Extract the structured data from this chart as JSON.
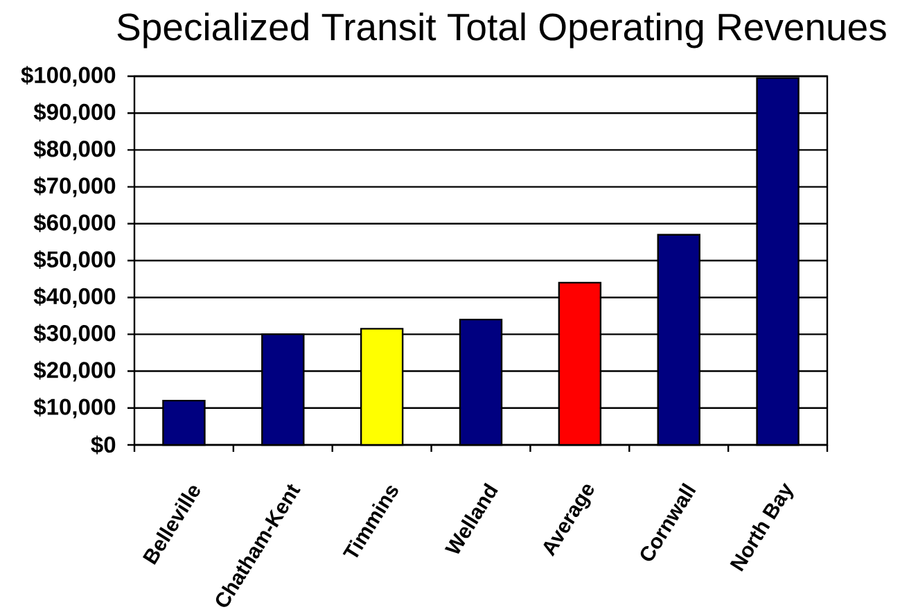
{
  "chart_data": {
    "type": "bar",
    "title": "Specialized Transit Total Operating Revenues",
    "categories": [
      "Belleville",
      "Chatham-Kent",
      "Timmins",
      "Welland",
      "Average",
      "Cornwall",
      "North Bay"
    ],
    "values": [
      12000,
      30000,
      31500,
      34000,
      44000,
      57000,
      99500
    ],
    "colors": [
      "#000080",
      "#000080",
      "#ffff00",
      "#000080",
      "#ff0000",
      "#000080",
      "#000080"
    ],
    "ylim": [
      0,
      100000
    ],
    "yticks": [
      {
        "value": 0,
        "label": "$0"
      },
      {
        "value": 10000,
        "label": "$10,000"
      },
      {
        "value": 20000,
        "label": "$20,000"
      },
      {
        "value": 30000,
        "label": "$30,000"
      },
      {
        "value": 40000,
        "label": "$40,000"
      },
      {
        "value": 50000,
        "label": "$50,000"
      },
      {
        "value": 60000,
        "label": "$60,000"
      },
      {
        "value": 70000,
        "label": "$70,000"
      },
      {
        "value": 80000,
        "label": "$80,000"
      },
      {
        "value": 90000,
        "label": "$90,000"
      },
      {
        "value": 100000,
        "label": "$100,000"
      }
    ],
    "grid": "y"
  }
}
